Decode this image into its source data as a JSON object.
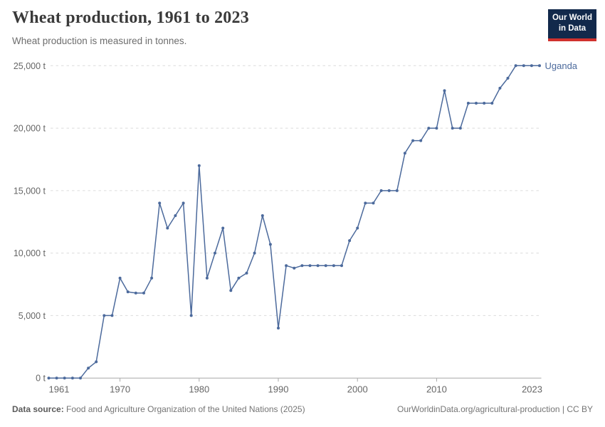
{
  "header": {
    "title": "Wheat production, 1961 to 2023",
    "subtitle": "Wheat production is measured in tonnes.",
    "logo": {
      "line1": "Our World",
      "line2": "in Data"
    }
  },
  "chart_data": {
    "type": "line",
    "title": "Wheat production, 1961 to 2023",
    "unit": "tonnes",
    "entity": "Uganda",
    "line_color": "#4c6a9c",
    "xlabel": "",
    "ylabel": "",
    "ylim": [
      0,
      25000
    ],
    "yticks": [
      0,
      5000,
      10000,
      15000,
      20000,
      25000
    ],
    "ytick_labels": [
      "0 t",
      "5,000 t",
      "10,000 t",
      "15,000 t",
      "20,000 t",
      "25,000 t"
    ],
    "xticks": [
      1961,
      1970,
      1980,
      1990,
      2000,
      2010,
      2023
    ],
    "grid": "horizontal-dashed",
    "legend_position": "line-end-label",
    "x": [
      1961,
      1962,
      1963,
      1964,
      1965,
      1966,
      1967,
      1968,
      1969,
      1970,
      1971,
      1972,
      1973,
      1974,
      1975,
      1976,
      1977,
      1978,
      1979,
      1980,
      1981,
      1982,
      1983,
      1984,
      1985,
      1986,
      1987,
      1988,
      1989,
      1990,
      1991,
      1992,
      1993,
      1994,
      1995,
      1996,
      1997,
      1998,
      1999,
      2000,
      2001,
      2002,
      2003,
      2004,
      2005,
      2006,
      2007,
      2008,
      2009,
      2010,
      2011,
      2012,
      2013,
      2014,
      2015,
      2016,
      2017,
      2018,
      2019,
      2020,
      2021,
      2022,
      2023
    ],
    "values": [
      0,
      0,
      0,
      0,
      0,
      800,
      1300,
      5000,
      5000,
      8000,
      6900,
      6800,
      6800,
      8000,
      14000,
      12000,
      13000,
      14000,
      5000,
      17000,
      8000,
      10000,
      12000,
      7000,
      8000,
      8400,
      10000,
      13000,
      10700,
      4000,
      9000,
      8800,
      9000,
      9000,
      9000,
      9000,
      9000,
      9000,
      11000,
      12000,
      14000,
      14000,
      15000,
      15000,
      15000,
      18000,
      19000,
      19000,
      20000,
      20000,
      23000,
      20000,
      20000,
      22000,
      22000,
      22000,
      22000,
      23200,
      24000,
      25000,
      25000,
      25000,
      25000
    ]
  },
  "footer": {
    "datasource_label": "Data source:",
    "datasource_text": " Food and Agriculture Organization of the United Nations (2025)",
    "credit": "OurWorldinData.org/agricultural-production | CC BY"
  },
  "colors": {
    "line": "#4c6a9c",
    "grid": "#dcdcdc",
    "axis": "#a8a8a8",
    "tick_label": "#666666",
    "logo_bg": "#12294b",
    "logo_accent": "#d0312d"
  }
}
